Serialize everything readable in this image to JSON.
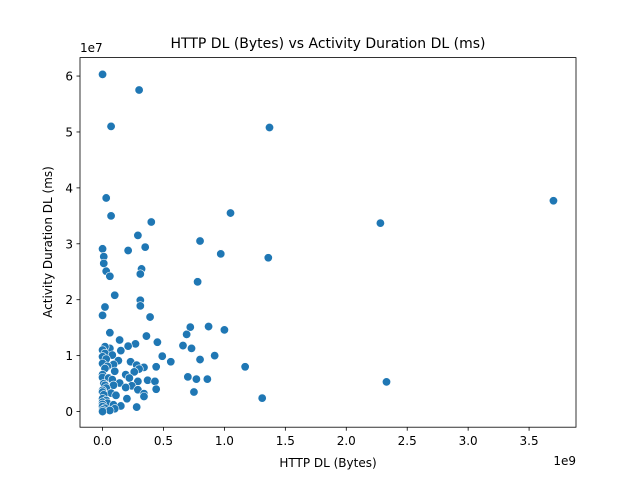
{
  "chart_data": {
    "type": "scatter",
    "title": "HTTP DL (Bytes) vs Activity Duration DL (ms)",
    "xlabel": "HTTP DL (Bytes)",
    "ylabel": "Activity Duration DL (ms)",
    "x_offset_label": "1e9",
    "y_offset_label": "1e7",
    "xlim": [
      -0.185,
      3.885
    ],
    "ylim": [
      -2.8,
      63.3
    ],
    "x_ticks": [
      0.0,
      0.5,
      1.0,
      1.5,
      2.0,
      2.5,
      3.0,
      3.5
    ],
    "x_tick_labels": [
      "0.0",
      "0.5",
      "1.0",
      "1.5",
      "2.0",
      "2.5",
      "3.0",
      "3.5"
    ],
    "y_ticks": [
      0,
      10,
      20,
      30,
      40,
      50,
      60
    ],
    "y_tick_labels": [
      "0",
      "1",
      "2",
      "3",
      "4",
      "5",
      "6"
    ],
    "grid": false,
    "marker_color": "#1f77b4",
    "points": [
      [
        0.0,
        60.3
      ],
      [
        0.3,
        57.5
      ],
      [
        0.07,
        51.0
      ],
      [
        1.37,
        50.8
      ],
      [
        0.03,
        38.2
      ],
      [
        3.7,
        37.7
      ],
      [
        1.05,
        35.5
      ],
      [
        0.07,
        35.0
      ],
      [
        0.4,
        33.9
      ],
      [
        2.28,
        33.7
      ],
      [
        0.29,
        31.5
      ],
      [
        0.8,
        30.5
      ],
      [
        0.0,
        29.1
      ],
      [
        0.35,
        29.4
      ],
      [
        0.21,
        28.8
      ],
      [
        0.97,
        28.2
      ],
      [
        0.01,
        27.7
      ],
      [
        1.36,
        27.5
      ],
      [
        0.01,
        26.5
      ],
      [
        0.32,
        25.5
      ],
      [
        0.03,
        25.1
      ],
      [
        0.31,
        24.6
      ],
      [
        0.06,
        24.2
      ],
      [
        0.78,
        23.2
      ],
      [
        0.1,
        20.8
      ],
      [
        0.31,
        19.9
      ],
      [
        0.31,
        18.9
      ],
      [
        0.02,
        18.7
      ],
      [
        0.0,
        17.2
      ],
      [
        0.39,
        16.9
      ],
      [
        0.72,
        15.1
      ],
      [
        0.87,
        15.2
      ],
      [
        1.0,
        14.6
      ],
      [
        0.06,
        14.1
      ],
      [
        0.69,
        13.8
      ],
      [
        0.36,
        13.5
      ],
      [
        0.14,
        12.8
      ],
      [
        0.45,
        12.4
      ],
      [
        0.66,
        11.8
      ],
      [
        0.27,
        12.1
      ],
      [
        0.06,
        11.3
      ],
      [
        0.73,
        11.3
      ],
      [
        0.02,
        11.6
      ],
      [
        0.21,
        11.7
      ],
      [
        0.0,
        11.0
      ],
      [
        0.15,
        10.9
      ],
      [
        0.02,
        10.4
      ],
      [
        0.08,
        10.1
      ],
      [
        0.49,
        9.9
      ],
      [
        0.92,
        10.0
      ],
      [
        0.0,
        9.8
      ],
      [
        0.8,
        9.3
      ],
      [
        0.03,
        9.4
      ],
      [
        0.13,
        9.1
      ],
      [
        0.23,
        8.9
      ],
      [
        0.56,
        8.9
      ],
      [
        0.0,
        8.6
      ],
      [
        0.09,
        8.4
      ],
      [
        0.28,
        8.3
      ],
      [
        0.04,
        8.1
      ],
      [
        0.34,
        7.9
      ],
      [
        0.44,
        8.0
      ],
      [
        1.17,
        8.0
      ],
      [
        0.02,
        7.7
      ],
      [
        0.3,
        7.6
      ],
      [
        0.1,
        7.2
      ],
      [
        0.26,
        7.1
      ],
      [
        0.0,
        6.6
      ],
      [
        0.19,
        6.6
      ],
      [
        0.0,
        6.1
      ],
      [
        0.05,
        6.0
      ],
      [
        0.22,
        6.0
      ],
      [
        0.7,
        6.2
      ],
      [
        0.77,
        5.8
      ],
      [
        0.86,
        5.8
      ],
      [
        0.08,
        5.7
      ],
      [
        0.37,
        5.6
      ],
      [
        0.29,
        5.4
      ],
      [
        0.43,
        5.4
      ],
      [
        2.33,
        5.3
      ],
      [
        0.01,
        5.0
      ],
      [
        0.14,
        5.1
      ],
      [
        0.02,
        4.7
      ],
      [
        0.09,
        4.7
      ],
      [
        0.24,
        4.6
      ],
      [
        0.03,
        4.2
      ],
      [
        0.19,
        4.3
      ],
      [
        0.44,
        4.0
      ],
      [
        0.0,
        3.8
      ],
      [
        0.29,
        3.9
      ],
      [
        0.0,
        3.5
      ],
      [
        0.75,
        3.5
      ],
      [
        0.07,
        3.3
      ],
      [
        0.34,
        3.2
      ],
      [
        0.01,
        3.0
      ],
      [
        0.11,
        2.9
      ],
      [
        0.34,
        2.7
      ],
      [
        0.0,
        2.3
      ],
      [
        0.2,
        2.3
      ],
      [
        1.31,
        2.4
      ],
      [
        0.03,
        2.0
      ],
      [
        0.0,
        1.7
      ],
      [
        0.04,
        1.5
      ],
      [
        0.0,
        1.3
      ],
      [
        0.09,
        1.2
      ],
      [
        0.15,
        1.0
      ],
      [
        0.0,
        0.9
      ],
      [
        0.28,
        0.8
      ],
      [
        0.02,
        0.6
      ],
      [
        0.1,
        0.5
      ],
      [
        0.0,
        0.3
      ],
      [
        0.06,
        0.2
      ],
      [
        0.0,
        0.0
      ]
    ]
  }
}
